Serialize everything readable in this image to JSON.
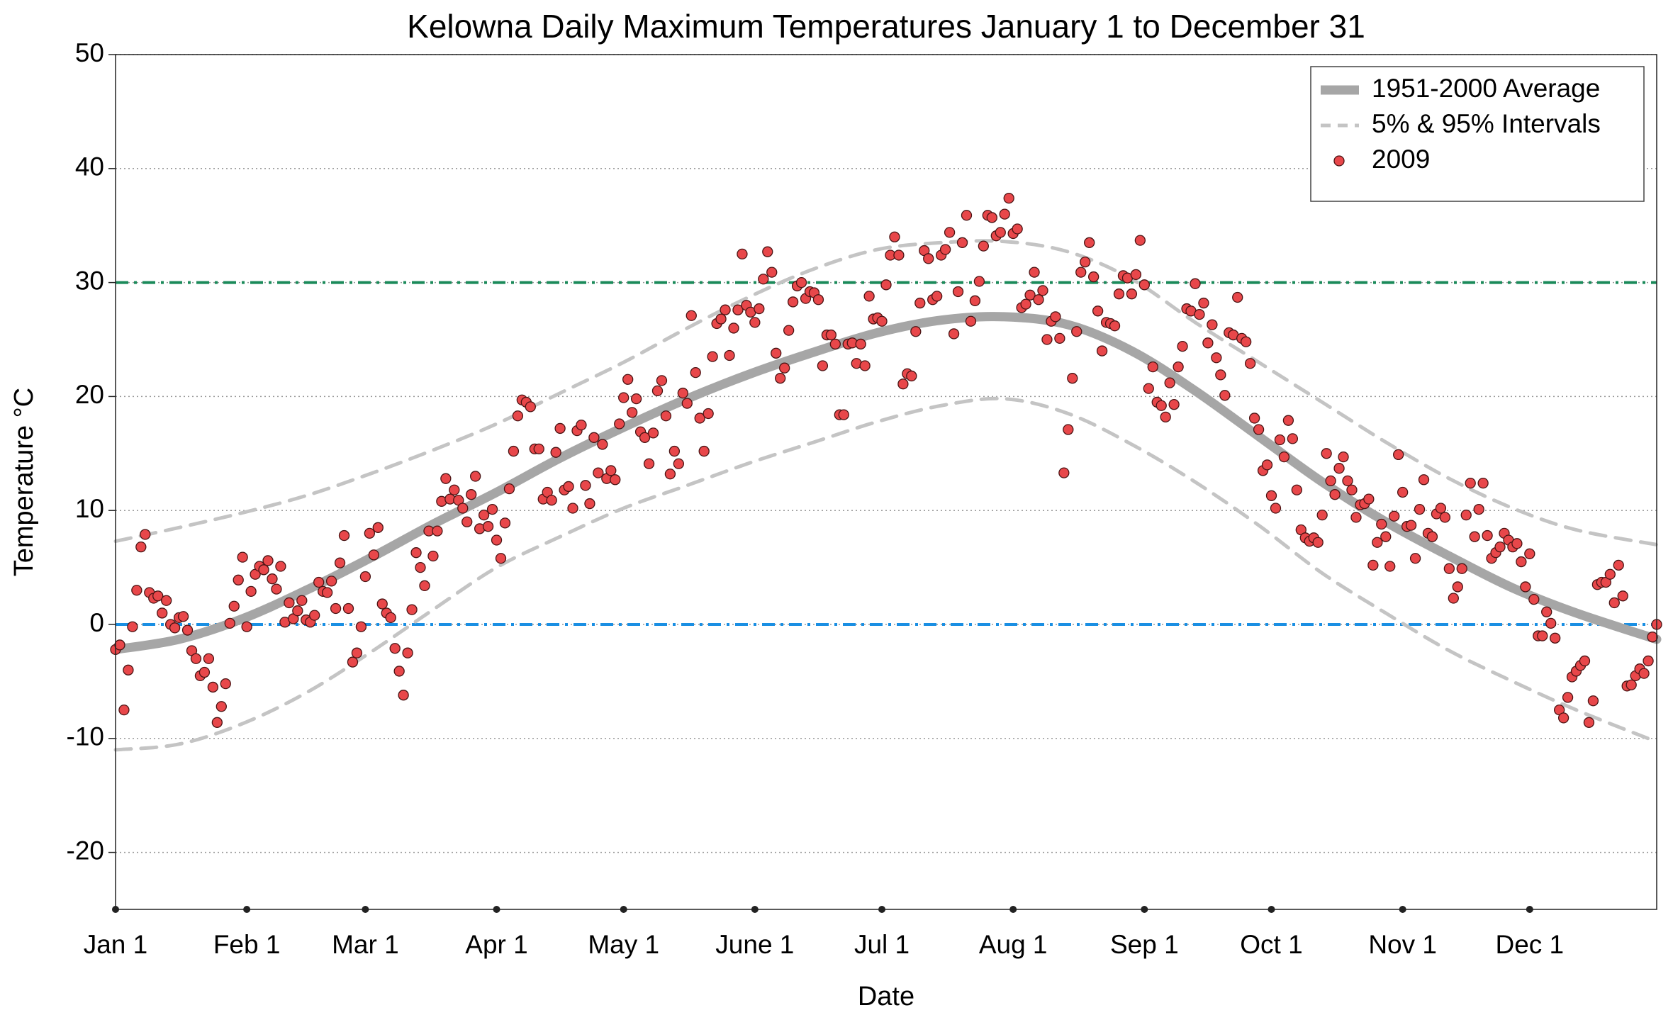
{
  "chart_data": {
    "type": "scatter",
    "title": "Kelowna Daily Maximum Temperatures January 1 to December 31",
    "x_label": "Date",
    "y_label": "Temperature °C",
    "xlim": [
      0,
      364
    ],
    "ylim": [
      -25,
      50
    ],
    "xticks": [
      {
        "value": 0,
        "label": "Jan 1"
      },
      {
        "value": 31,
        "label": "Feb 1"
      },
      {
        "value": 59,
        "label": "Mar 1"
      },
      {
        "value": 90,
        "label": "Apr 1"
      },
      {
        "value": 120,
        "label": "May 1"
      },
      {
        "value": 151,
        "label": "June 1"
      },
      {
        "value": 181,
        "label": "Jul 1"
      },
      {
        "value": 212,
        "label": "Aug 1"
      },
      {
        "value": 243,
        "label": "Sep 1"
      },
      {
        "value": 273,
        "label": "Oct 1"
      },
      {
        "value": 304,
        "label": "Nov 1"
      },
      {
        "value": 334,
        "label": "Dec 1"
      }
    ],
    "yticks": [
      -20,
      -10,
      0,
      10,
      20,
      30,
      40,
      50
    ],
    "grid": true,
    "legend": "upper right",
    "reference_lines": [
      {
        "value": 30,
        "color": "#1b8a5a"
      },
      {
        "value": 0,
        "color": "#1a8fe3"
      }
    ],
    "series": [
      {
        "name": "1951-2000 Average",
        "color": "#a6a6a6",
        "style": "line",
        "x": [
          0,
          15,
          30,
          45,
          60,
          75,
          90,
          105,
          120,
          135,
          150,
          165,
          180,
          195,
          210,
          225,
          240,
          255,
          270,
          285,
          300,
          315,
          330,
          345,
          364
        ],
        "values": [
          -2.2,
          -1.3,
          0.5,
          3,
          5.8,
          8.8,
          11.6,
          14.6,
          17.3,
          19.8,
          22,
          23.9,
          25.6,
          26.7,
          27,
          26.3,
          24,
          20.5,
          16.5,
          12.5,
          9,
          6,
          3.2,
          1,
          -1.3
        ]
      },
      {
        "name": "5% & 95% Intervals",
        "color": "#c4c4c4",
        "style": "dashed",
        "x": [
          0,
          15,
          30,
          45,
          60,
          75,
          90,
          105,
          120,
          135,
          150,
          165,
          180,
          195,
          210,
          225,
          240,
          255,
          270,
          285,
          300,
          315,
          330,
          345,
          364
        ],
        "values": [
          7.3,
          8.5,
          9.8,
          11.3,
          13.2,
          15.3,
          17.6,
          20.3,
          23,
          26,
          28.8,
          31.2,
          32.9,
          33.5,
          33.6,
          32.7,
          30.3,
          26.5,
          23,
          19.5,
          16,
          12.8,
          10.2,
          8.3,
          7
        ],
        "lower_values": [
          -11,
          -10.5,
          -8.7,
          -6,
          -2.5,
          1.3,
          5,
          7.7,
          10.2,
          12.2,
          14.2,
          16,
          17.8,
          19.2,
          19.8,
          18.5,
          15.8,
          12.5,
          8.7,
          4.5,
          1,
          -2.3,
          -5,
          -7.5,
          -10.3
        ]
      },
      {
        "name": "2009",
        "color": "#e8474a",
        "style": "markers",
        "x": [
          0,
          1,
          2,
          3,
          4,
          5,
          6,
          7,
          8,
          9,
          10,
          11,
          12,
          13,
          14,
          15,
          16,
          17,
          18,
          19,
          20,
          21,
          22,
          23,
          24,
          25,
          26,
          27,
          28,
          29,
          30,
          31,
          32,
          33,
          34,
          35,
          36,
          37,
          38,
          39,
          40,
          41,
          42,
          43,
          44,
          45,
          46,
          47,
          48,
          49,
          50,
          51,
          52,
          53,
          54,
          55,
          56,
          57,
          58,
          59,
          60,
          61,
          62,
          63,
          64,
          65,
          66,
          67,
          68,
          69,
          70,
          71,
          72,
          73,
          74,
          75,
          76,
          77,
          78,
          79,
          80,
          81,
          82,
          83,
          84,
          85,
          86,
          87,
          88,
          89,
          90,
          91,
          92,
          93,
          94,
          95,
          96,
          97,
          98,
          99,
          100,
          101,
          102,
          103,
          104,
          105,
          106,
          107,
          108,
          109,
          110,
          111,
          112,
          113,
          114,
          115,
          116,
          117,
          118,
          119,
          120,
          121,
          122,
          123,
          124,
          125,
          126,
          127,
          128,
          129,
          130,
          131,
          132,
          133,
          134,
          135,
          136,
          137,
          138,
          139,
          140,
          141,
          142,
          143,
          144,
          145,
          146,
          147,
          148,
          149,
          150,
          151,
          152,
          153,
          154,
          155,
          156,
          157,
          158,
          159,
          160,
          161,
          162,
          163,
          164,
          165,
          166,
          167,
          168,
          169,
          170,
          171,
          172,
          173,
          174,
          175,
          176,
          177,
          178,
          179,
          180,
          181,
          182,
          183,
          184,
          185,
          186,
          187,
          188,
          189,
          190,
          191,
          192,
          193,
          194,
          195,
          196,
          197,
          198,
          199,
          200,
          201,
          202,
          203,
          204,
          205,
          206,
          207,
          208,
          209,
          210,
          211,
          212,
          213,
          214,
          215,
          216,
          217,
          218,
          219,
          220,
          221,
          222,
          223,
          224,
          225,
          226,
          227,
          228,
          229,
          230,
          231,
          232,
          233,
          234,
          235,
          236,
          237,
          238,
          239,
          240,
          241,
          242,
          243,
          244,
          245,
          246,
          247,
          248,
          249,
          250,
          251,
          252,
          253,
          254,
          255,
          256,
          257,
          258,
          259,
          260,
          261,
          262,
          263,
          264,
          265,
          266,
          267,
          268,
          269,
          270,
          271,
          272,
          273,
          274,
          275,
          276,
          277,
          278,
          279,
          280,
          281,
          282,
          283,
          284,
          285,
          286,
          287,
          288,
          289,
          290,
          291,
          292,
          293,
          294,
          295,
          296,
          297,
          298,
          299,
          300,
          301,
          302,
          303,
          304,
          305,
          306,
          307,
          308,
          309,
          310,
          311,
          312,
          313,
          314,
          315,
          316,
          317,
          318,
          319,
          320,
          321,
          322,
          323,
          324,
          325,
          326,
          327,
          328,
          329,
          330,
          331,
          332,
          333,
          334,
          335,
          336,
          337,
          338,
          339,
          340,
          341,
          342,
          343,
          344,
          345,
          346,
          347,
          348,
          349,
          350,
          351,
          352,
          353,
          354,
          355,
          356,
          357,
          358,
          359,
          360,
          361,
          362,
          363,
          364
        ],
        "values": [
          -2.2,
          -1.8,
          -7.5,
          -4,
          -0.2,
          3,
          6.8,
          7.9,
          2.8,
          2.3,
          2.5,
          1,
          2.1,
          0,
          -0.3,
          0.6,
          0.7,
          -0.5,
          -2.3,
          -3,
          -4.5,
          -4.2,
          -3,
          -5.5,
          -8.6,
          -7.2,
          -5.2,
          0.1,
          1.6,
          3.9,
          5.9,
          -0.2,
          2.9,
          4.4,
          5.1,
          4.8,
          5.6,
          4,
          3.1,
          5.1,
          0.2,
          1.9,
          0.5,
          1.2,
          2.1,
          0.4,
          0.2,
          0.8,
          3.7,
          2.9,
          2.8,
          3.8,
          1.4,
          5.4,
          7.8,
          1.4,
          -3.3,
          -2.5,
          -0.2,
          4.2,
          8,
          6.1,
          8.5,
          1.8,
          1,
          0.6,
          -2.1,
          -4.1,
          -6.2,
          -2.5,
          1.3,
          6.3,
          5,
          3.4,
          8.2,
          6,
          8.2,
          10.8,
          12.8,
          11,
          11.8,
          10.9,
          10.2,
          9,
          11.4,
          13,
          8.4,
          9.6,
          8.6,
          10.1,
          7.4,
          5.8,
          8.9,
          11.9,
          15.2,
          18.3,
          19.7,
          19.5,
          19.1,
          15.4,
          15.4,
          11,
          11.6,
          10.9,
          15.1,
          17.2,
          11.8,
          12.1,
          10.2,
          17,
          17.5,
          12.2,
          10.6,
          16.4,
          13.3,
          15.8,
          12.8,
          13.5,
          12.7,
          17.6,
          19.9,
          21.5,
          18.6,
          19.8,
          16.9,
          16.4,
          14.1,
          16.8,
          20.5,
          21.4,
          18.3,
          13.2,
          15.2,
          14.1,
          20.3,
          19.4,
          27.1,
          22.1,
          18.1,
          15.2,
          18.5,
          23.5,
          26.4,
          26.8,
          27.6,
          23.6,
          26,
          27.6,
          32.5,
          28,
          27.4,
          26.5,
          27.7,
          30.3,
          32.7,
          30.9,
          23.8,
          21.6,
          22.5,
          25.8,
          28.3,
          29.7,
          30,
          28.6,
          29.2,
          29.1,
          28.5,
          22.7,
          25.4,
          25.4,
          24.6,
          18.4,
          18.4,
          24.6,
          24.7,
          22.9,
          24.6,
          22.7,
          28.8,
          26.8,
          26.9,
          26.6,
          29.8,
          32.4,
          34,
          32.4,
          21.1,
          22,
          21.8,
          25.7,
          28.2,
          32.8,
          32.1,
          28.5,
          28.8,
          32.4,
          32.9,
          34.4,
          25.5,
          29.2,
          33.5,
          35.9,
          26.6,
          28.4,
          30.1,
          33.2,
          35.9,
          35.7,
          34.1,
          34.4,
          36,
          37.4,
          34.3,
          34.7,
          27.8,
          28.1,
          28.9,
          30.9,
          28.5,
          29.3,
          25,
          26.6,
          27,
          25.1,
          13.3,
          17.1,
          21.6,
          25.7,
          30.9,
          31.8,
          33.5,
          30.5,
          27.5,
          24,
          26.5,
          26.4,
          26.2,
          29,
          30.6,
          30.4,
          29,
          30.7,
          33.7,
          29.8,
          20.7,
          22.6,
          19.5,
          19.2,
          18.2,
          21.2,
          19.3,
          22.6,
          24.4,
          27.7,
          27.5,
          29.9,
          27.2,
          28.2,
          24.7,
          26.3,
          23.4,
          21.9,
          20.1,
          25.6,
          25.4,
          28.7,
          25.1,
          24.8,
          22.9,
          18.1,
          17.1,
          13.5,
          14,
          11.3,
          10.2,
          16.2,
          14.7,
          17.9,
          16.3,
          11.8,
          8.3,
          7.6,
          7.3,
          7.6,
          7.2,
          9.6,
          15,
          12.6,
          11.4,
          13.7,
          14.7,
          12.6,
          11.8,
          9.4,
          10.5,
          10.6,
          11,
          5.2,
          7.2,
          8.8,
          7.7,
          5.1,
          9.5,
          14.9,
          11.6,
          8.6,
          8.7,
          5.8,
          10.1,
          12.7,
          8,
          7.7,
          9.7,
          10.2,
          9.4,
          4.9,
          2.3,
          3.3,
          4.9,
          9.6,
          12.4,
          7.7,
          10.1,
          12.4,
          7.8,
          5.8,
          6.3,
          6.8,
          8,
          7.4,
          6.8,
          7.1,
          5.5,
          3.3,
          6.2,
          2.2,
          -1,
          -1,
          1.1,
          0.1,
          -1.2,
          -7.5,
          -8.2,
          -6.4,
          -4.6,
          -4.1,
          -3.6,
          -3.2,
          -8.6,
          -6.7,
          3.5,
          3.7,
          3.7,
          4.4,
          1.9,
          5.2,
          2.5,
          -5.4,
          -5.3,
          -4.5,
          -3.9,
          -4.3,
          -3.2,
          -1.1,
          0
        ]
      }
    ]
  }
}
